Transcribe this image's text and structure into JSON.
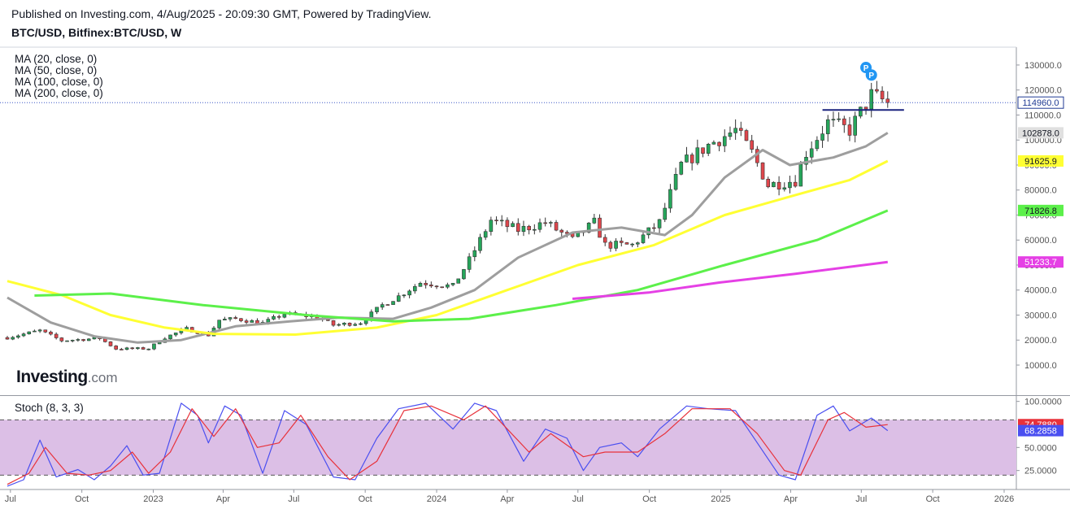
{
  "header": {
    "published": "Published on Investing.com, 4/Aug/2025 - 20:09:30 GMT, Powered by TradingView.",
    "symbol": "BTC/USD, Bitfinex:BTC/USD, W"
  },
  "legend": {
    "ma": [
      "MA (20, close, 0)",
      "MA (50, close, 0)",
      "MA (100, close, 0)",
      "MA (200, close, 0)"
    ],
    "stoch": "Stoch (8, 3, 3)"
  },
  "logo": {
    "main": "Investing",
    "suffix": ".com"
  },
  "colors": {
    "up": "#26a65b",
    "down": "#e0464c",
    "ma20": "#9e9e9e",
    "ma50": "#ffff33",
    "ma100": "#5cf04a",
    "ma200": "#e540e5",
    "stoch_k": "#4a4ff0",
    "stoch_d": "#e8313a",
    "stoch_band": "#dcbfe6",
    "resistance": "#1a237e",
    "price_line": "#3a56c5"
  },
  "chart_data": [
    {
      "type": "candlestick",
      "title": "BTC/USD, Bitfinex:BTC/USD, W",
      "x_axis": {
        "type": "date",
        "labels": [
          {
            "date": "2022-07-01",
            "text": "Jul"
          },
          {
            "date": "2022-10-01",
            "text": "Oct"
          },
          {
            "date": "2023-01-01",
            "text": "2023"
          },
          {
            "date": "2023-04-01",
            "text": "Apr"
          },
          {
            "date": "2023-07-01",
            "text": "Jul"
          },
          {
            "date": "2023-10-01",
            "text": "Oct"
          },
          {
            "date": "2024-01-01",
            "text": "2024"
          },
          {
            "date": "2024-04-01",
            "text": "Apr"
          },
          {
            "date": "2024-07-01",
            "text": "Jul"
          },
          {
            "date": "2024-10-01",
            "text": "Oct"
          },
          {
            "date": "2025-01-01",
            "text": "2025"
          },
          {
            "date": "2025-04-01",
            "text": "Apr"
          },
          {
            "date": "2025-07-01",
            "text": "Jul"
          },
          {
            "date": "2025-10-01",
            "text": "Oct"
          },
          {
            "date": "2026-01-01",
            "text": "2026"
          }
        ]
      },
      "y_axis": {
        "ticks": [
          "10000.0",
          "20000.0",
          "30000.0",
          "40000.0",
          "50000.0",
          "60000.0",
          "70000.0",
          "80000.0",
          "90000.0",
          "100000.0",
          "110000.0",
          "120000.0",
          "130000.0"
        ],
        "ylim": [
          10000,
          133000
        ]
      },
      "price_labels": [
        {
          "text": "114960.0",
          "value": 114960,
          "style": "last"
        },
        {
          "text": "102878.0",
          "value": 102878,
          "series": "MA (20, close, 0)"
        },
        {
          "text": "91625.9",
          "value": 91625.9,
          "series": "MA (50, close, 0)"
        },
        {
          "text": "71826.8",
          "value": 71826.8,
          "series": "MA (100, close, 0)"
        },
        {
          "text": "51233.7",
          "value": 51233.7,
          "series": "MA (200, close, 0)"
        }
      ],
      "ohlc_anchors": [
        [
          "2022-06-27",
          21000
        ],
        [
          "2022-08-08",
          23800
        ],
        [
          "2022-09-05",
          19800
        ],
        [
          "2022-10-24",
          20700
        ],
        [
          "2022-11-14",
          16500
        ],
        [
          "2022-12-26",
          16600
        ],
        [
          "2023-01-16",
          21000
        ],
        [
          "2023-02-13",
          24500
        ],
        [
          "2023-03-13",
          22000
        ],
        [
          "2023-03-27",
          28000
        ],
        [
          "2023-04-17",
          28500
        ],
        [
          "2023-05-22",
          26800
        ],
        [
          "2023-06-19",
          30500
        ],
        [
          "2023-07-31",
          29200
        ],
        [
          "2023-08-21",
          26000
        ],
        [
          "2023-09-25",
          27000
        ],
        [
          "2023-10-23",
          34000
        ],
        [
          "2023-11-13",
          37500
        ],
        [
          "2023-12-11",
          43000
        ],
        [
          "2024-01-22",
          41500
        ],
        [
          "2024-02-12",
          52000
        ],
        [
          "2024-03-11",
          68000
        ],
        [
          "2024-04-15",
          64000
        ],
        [
          "2024-05-20",
          67000
        ],
        [
          "2024-06-24",
          60000
        ],
        [
          "2024-07-22",
          67000
        ],
        [
          "2024-08-05",
          58000
        ],
        [
          "2024-09-09",
          58000
        ],
        [
          "2024-10-14",
          67000
        ],
        [
          "2024-11-11",
          90000
        ],
        [
          "2024-12-16",
          98000
        ],
        [
          "2025-01-20",
          104000
        ],
        [
          "2025-02-10",
          95000
        ],
        [
          "2025-03-03",
          82000
        ],
        [
          "2025-04-07",
          84000
        ],
        [
          "2025-04-21",
          95000
        ],
        [
          "2025-05-19",
          107000
        ],
        [
          "2025-06-16",
          104000
        ],
        [
          "2025-07-14",
          118000
        ],
        [
          "2025-08-04",
          114960
        ]
      ],
      "series": [
        {
          "name": "MA (20, close, 0)",
          "points": [
            [
              "2022-06-27",
              37000
            ],
            [
              "2022-08-22",
              27000
            ],
            [
              "2022-10-17",
              21500
            ],
            [
              "2022-12-12",
              19000
            ],
            [
              "2023-02-06",
              20000
            ],
            [
              "2023-04-17",
              25500
            ],
            [
              "2023-06-26",
              27500
            ],
            [
              "2023-08-28",
              29000
            ],
            [
              "2023-11-06",
              28500
            ],
            [
              "2023-12-25",
              33000
            ],
            [
              "2024-02-19",
              40000
            ],
            [
              "2024-04-15",
              53000
            ],
            [
              "2024-06-24",
              63000
            ],
            [
              "2024-08-26",
              65000
            ],
            [
              "2024-10-21",
              62000
            ],
            [
              "2024-11-25",
              70000
            ],
            [
              "2025-01-06",
              85000
            ],
            [
              "2025-02-24",
              96000
            ],
            [
              "2025-03-31",
              90000
            ],
            [
              "2025-05-26",
              93000
            ],
            [
              "2025-07-07",
              97500
            ],
            [
              "2025-08-04",
              102878
            ]
          ]
        },
        {
          "name": "MA (50, close, 0)",
          "points": [
            [
              "2022-06-27",
              43600
            ],
            [
              "2022-09-05",
              38000
            ],
            [
              "2022-11-07",
              30000
            ],
            [
              "2023-01-16",
              25000
            ],
            [
              "2023-03-20",
              22500
            ],
            [
              "2023-07-03",
              22200
            ],
            [
              "2023-10-16",
              25000
            ],
            [
              "2024-01-01",
              30000
            ],
            [
              "2024-04-01",
              40000
            ],
            [
              "2024-07-01",
              50000
            ],
            [
              "2024-10-07",
              58000
            ],
            [
              "2025-01-06",
              70000
            ],
            [
              "2025-04-07",
              78000
            ],
            [
              "2025-06-16",
              84000
            ],
            [
              "2025-08-04",
              91625.9
            ]
          ]
        },
        {
          "name": "MA (100, close, 0)",
          "points": [
            [
              "2022-08-01",
              37800
            ],
            [
              "2022-11-07",
              38600
            ],
            [
              "2023-03-06",
              34000
            ],
            [
              "2023-07-17",
              30000
            ],
            [
              "2023-11-06",
              27500
            ],
            [
              "2024-02-12",
              28500
            ],
            [
              "2024-06-03",
              34000
            ],
            [
              "2024-09-16",
              40000
            ],
            [
              "2025-01-06",
              50000
            ],
            [
              "2025-05-05",
              60000
            ],
            [
              "2025-08-04",
              71826.8
            ]
          ]
        },
        {
          "name": "MA (200, close, 0)",
          "points": [
            [
              "2024-06-24",
              36500
            ],
            [
              "2024-09-30",
              39000
            ],
            [
              "2024-12-30",
              43000
            ],
            [
              "2025-04-07",
              46500
            ],
            [
              "2025-08-04",
              51233.7
            ]
          ]
        }
      ],
      "resistance_line": {
        "from": "2025-05-12",
        "to": "2025-08-25",
        "value": 112000
      },
      "markers": [
        {
          "text": "P",
          "date": "2025-07-07",
          "value": 129000
        },
        {
          "text": "P",
          "date": "2025-07-14",
          "value": 126000
        }
      ]
    },
    {
      "type": "line",
      "title": "Stoch (8, 3, 3)",
      "y_axis": {
        "ticks": [
          "25.0000",
          "50.0000",
          "100.0000"
        ],
        "ylim": [
          0,
          100
        ]
      },
      "bands": [
        20,
        80
      ],
      "price_labels": [
        {
          "text": "74.7880",
          "value": 74.788,
          "series": "%D"
        },
        {
          "text": "68.2858",
          "value": 68.2858,
          "series": "%K"
        }
      ],
      "series": [
        {
          "points": [
            [
              "2022-06-27",
              8
            ],
            [
              "2022-07-18",
              15
            ],
            [
              "2022-08-08",
              58
            ],
            [
              "2022-08-29",
              18
            ],
            [
              "2022-09-26",
              26
            ],
            [
              "2022-10-17",
              15
            ],
            [
              "2022-11-07",
              30
            ],
            [
              "2022-11-28",
              52
            ],
            [
              "2022-12-19",
              20
            ],
            [
              "2023-01-09",
              22
            ],
            [
              "2023-02-06",
              98
            ],
            [
              "2023-02-27",
              85
            ],
            [
              "2023-03-13",
              55
            ],
            [
              "2023-04-03",
              95
            ],
            [
              "2023-04-24",
              85
            ],
            [
              "2023-05-22",
              22
            ],
            [
              "2023-06-19",
              90
            ],
            [
              "2023-07-17",
              75
            ],
            [
              "2023-08-21",
              18
            ],
            [
              "2023-09-18",
              15
            ],
            [
              "2023-10-16",
              60
            ],
            [
              "2023-11-13",
              92
            ],
            [
              "2023-12-18",
              98
            ],
            [
              "2024-01-22",
              70
            ],
            [
              "2024-02-19",
              98
            ],
            [
              "2024-03-18",
              90
            ],
            [
              "2024-04-22",
              35
            ],
            [
              "2024-05-20",
              70
            ],
            [
              "2024-06-17",
              60
            ],
            [
              "2024-07-08",
              25
            ],
            [
              "2024-07-29",
              50
            ],
            [
              "2024-08-26",
              55
            ],
            [
              "2024-09-16",
              40
            ],
            [
              "2024-10-14",
              70
            ],
            [
              "2024-11-18",
              95
            ],
            [
              "2024-12-16",
              92
            ],
            [
              "2025-01-20",
              90
            ],
            [
              "2025-02-17",
              55
            ],
            [
              "2025-03-17",
              20
            ],
            [
              "2025-04-07",
              15
            ],
            [
              "2025-05-05",
              85
            ],
            [
              "2025-05-26",
              95
            ],
            [
              "2025-06-16",
              68
            ],
            [
              "2025-07-14",
              82
            ],
            [
              "2025-08-04",
              68.2858
            ]
          ]
        },
        {
          "points": [
            [
              "2022-06-27",
              10
            ],
            [
              "2022-07-25",
              22
            ],
            [
              "2022-08-15",
              50
            ],
            [
              "2022-09-12",
              22
            ],
            [
              "2022-10-10",
              20
            ],
            [
              "2022-11-07",
              25
            ],
            [
              "2022-12-05",
              45
            ],
            [
              "2022-12-26",
              22
            ],
            [
              "2023-01-23",
              45
            ],
            [
              "2023-02-20",
              92
            ],
            [
              "2023-03-20",
              62
            ],
            [
              "2023-04-17",
              92
            ],
            [
              "2023-05-15",
              50
            ],
            [
              "2023-06-12",
              55
            ],
            [
              "2023-07-10",
              85
            ],
            [
              "2023-08-14",
              40
            ],
            [
              "2023-09-11",
              15
            ],
            [
              "2023-10-16",
              35
            ],
            [
              "2023-11-20",
              90
            ],
            [
              "2023-12-25",
              95
            ],
            [
              "2024-02-05",
              80
            ],
            [
              "2024-03-04",
              95
            ],
            [
              "2024-04-29",
              45
            ],
            [
              "2024-05-27",
              65
            ],
            [
              "2024-07-08",
              40
            ],
            [
              "2024-08-05",
              45
            ],
            [
              "2024-09-16",
              45
            ],
            [
              "2024-10-21",
              65
            ],
            [
              "2024-11-25",
              92
            ],
            [
              "2025-01-13",
              92
            ],
            [
              "2025-02-17",
              65
            ],
            [
              "2025-03-24",
              25
            ],
            [
              "2025-04-14",
              20
            ],
            [
              "2025-05-19",
              80
            ],
            [
              "2025-06-09",
              88
            ],
            [
              "2025-07-07",
              72
            ],
            [
              "2025-08-04",
              74.788
            ]
          ]
        }
      ]
    }
  ]
}
